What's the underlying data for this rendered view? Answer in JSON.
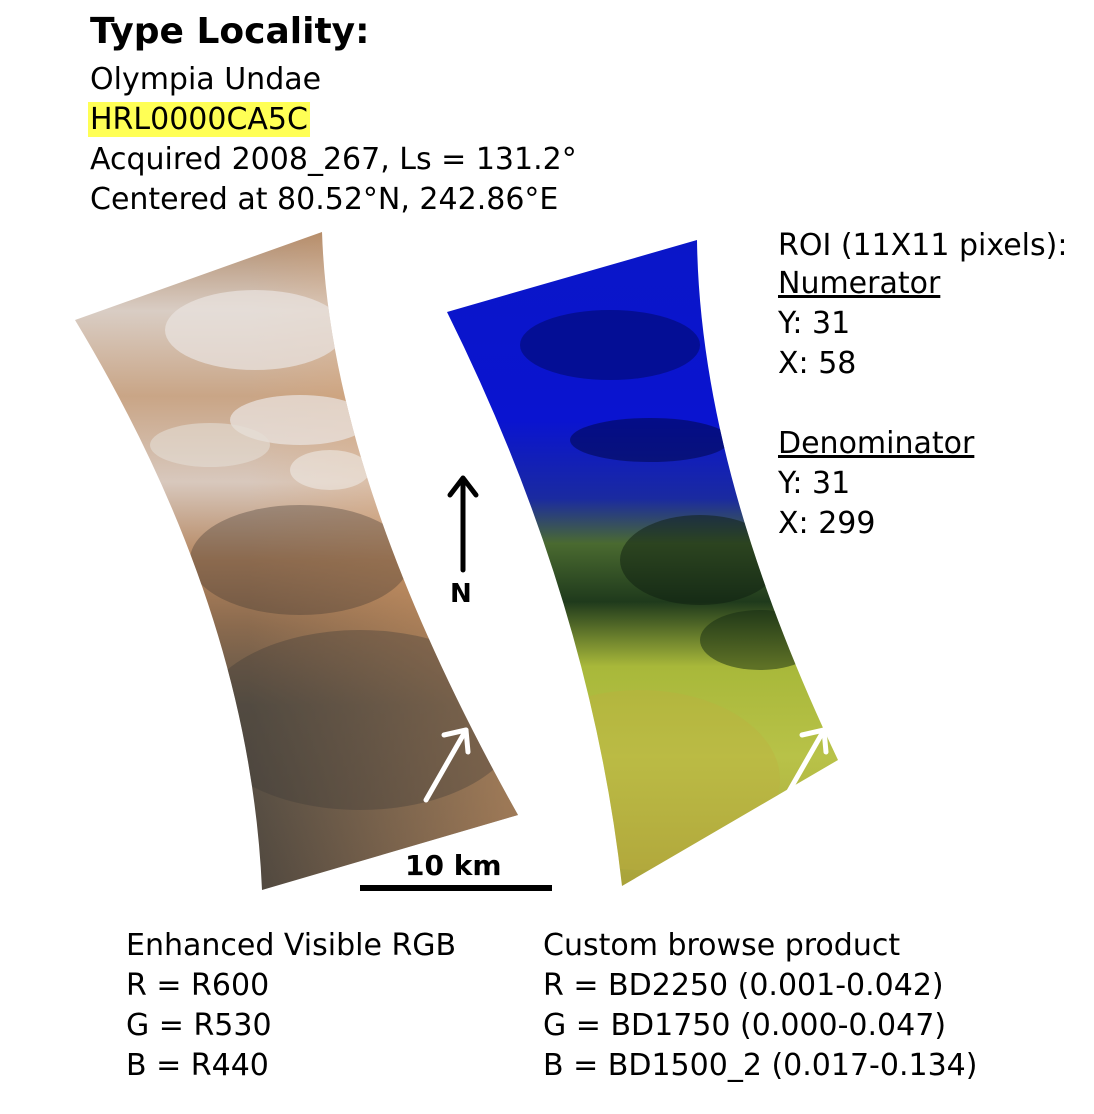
{
  "header": {
    "title": "Type Locality:",
    "location": "Olympia Undae",
    "observation_id": "HRL0000CA5C",
    "acquired": "Acquired 2008_267, Ls = 131.2°",
    "centered": "Centered at 80.52°N, 242.86°E"
  },
  "roi": {
    "title": "ROI (11X11 pixels):",
    "numerator_label": "Numerator",
    "numerator_y": "Y: 31",
    "numerator_x": "X: 58",
    "denominator_label": "Denominator",
    "denominator_y": "Y: 31",
    "denominator_x": "X: 299"
  },
  "map": {
    "north_label": "N",
    "scale_label": "10 km"
  },
  "left_panel": {
    "title": "Enhanced Visible RGB",
    "r": "R = R600",
    "g": "G = R530",
    "b": "B = R440"
  },
  "right_panel": {
    "title": "Custom browse product",
    "r": "R = BD2250 (0.001-0.042)",
    "g": "G = BD1750 (0.000-0.047)",
    "b": "B = BD1500_2 (0.017-0.134)"
  }
}
